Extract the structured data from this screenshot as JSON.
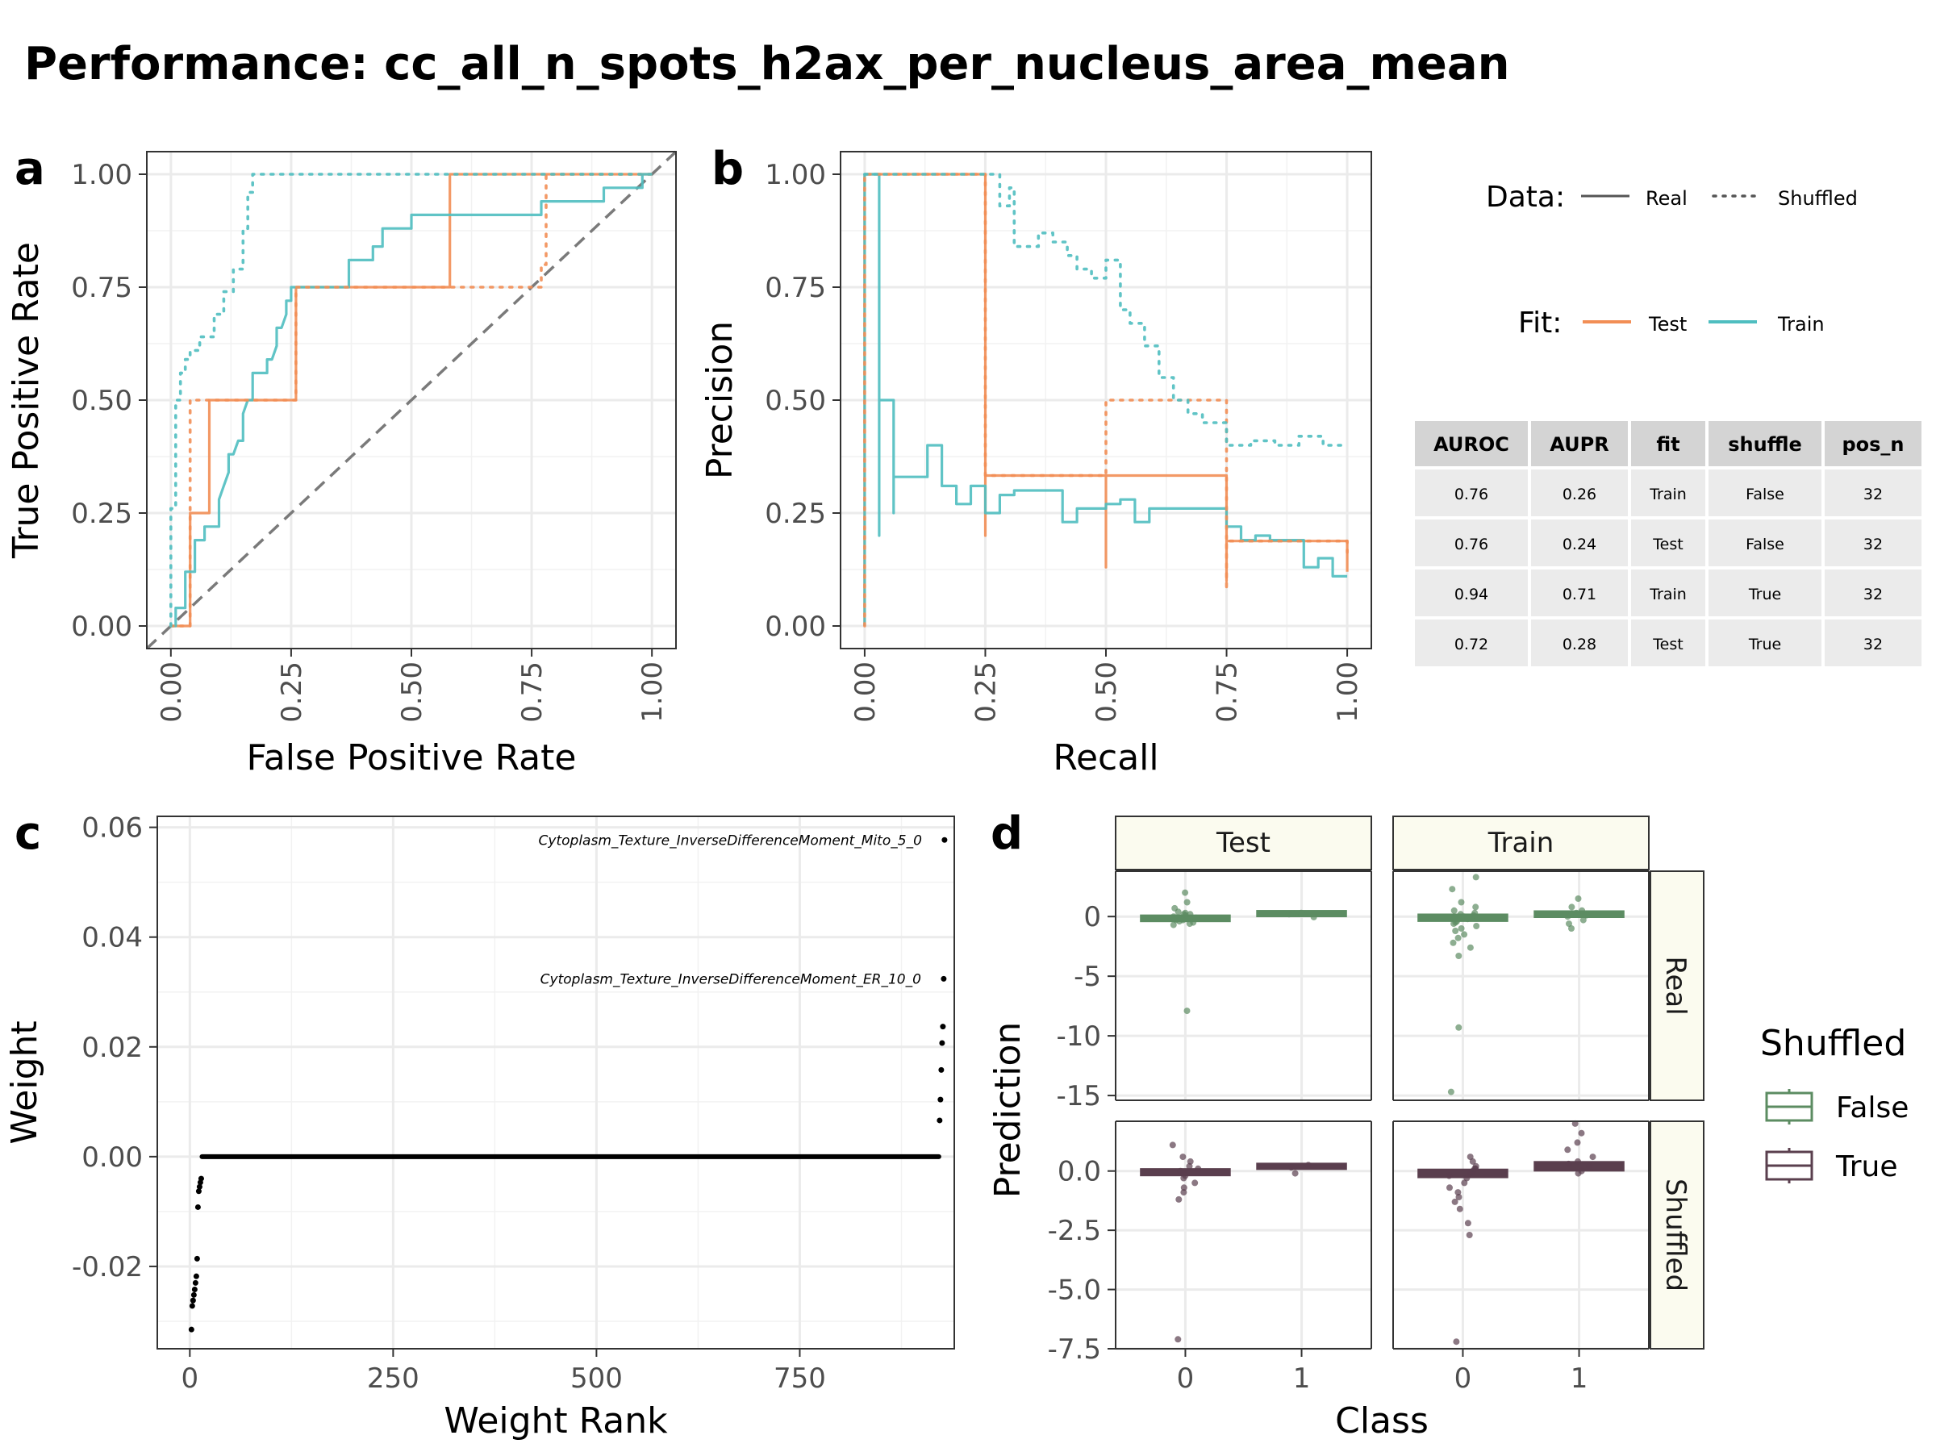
{
  "title": "Performance: cc_all_n_spots_h2ax_per_nucleus_area_mean",
  "panel_labels": {
    "a": "a",
    "b": "b",
    "c": "c",
    "d": "d"
  },
  "colors": {
    "test": "#f28e55",
    "train": "#4fbec0",
    "shuffled_false": "#5c8c62",
    "shuffled_true": "#5a3f4e"
  },
  "legend_data": {
    "title": "Data:",
    "items": [
      {
        "label": "Real",
        "style": "solid"
      },
      {
        "label": "Shuffled",
        "style": "dotted"
      }
    ]
  },
  "legend_fit": {
    "title": "Fit:",
    "items": [
      {
        "label": "Test",
        "color": "#f28e55"
      },
      {
        "label": "Train",
        "color": "#4fbec0"
      }
    ]
  },
  "legend_shuffled": {
    "title": "Shuffled",
    "items": [
      {
        "label": "False",
        "color": "#5c8c62"
      },
      {
        "label": "True",
        "color": "#5a3f4e"
      }
    ]
  },
  "metrics_table": {
    "columns": [
      "AUROC",
      "AUPR",
      "fit",
      "shuffle",
      "pos_n"
    ],
    "rows": [
      [
        "0.76",
        "0.26",
        "Train",
        "False",
        "32"
      ],
      [
        "0.76",
        "0.24",
        "Test",
        "False",
        "32"
      ],
      [
        "0.94",
        "0.71",
        "Train",
        "True",
        "32"
      ],
      [
        "0.72",
        "0.28",
        "Test",
        "True",
        "32"
      ]
    ]
  },
  "chart_data": [
    {
      "id": "a",
      "type": "line",
      "title": "",
      "xlabel": "False Positive Rate",
      "ylabel": "True Positive Rate",
      "xlim": [
        -0.05,
        1.05
      ],
      "ylim": [
        -0.05,
        1.05
      ],
      "xticks": [
        "0.00",
        "0.25",
        "0.50",
        "0.75",
        "1.00"
      ],
      "yticks": [
        "0.00",
        "0.25",
        "0.50",
        "0.75",
        "1.00"
      ],
      "diagonal": true,
      "series": [
        {
          "name": "Test Real",
          "fit": "Test",
          "data": "Real",
          "x": [
            0,
            0.04,
            0.04,
            0.04,
            0.08,
            0.08,
            0.26,
            0.26,
            0.58,
            0.58,
            1.0
          ],
          "y": [
            0,
            0,
            0.1,
            0.25,
            0.25,
            0.5,
            0.5,
            0.75,
            0.75,
            1.0,
            1.0
          ]
        },
        {
          "name": "Train Real",
          "fit": "Train",
          "data": "Real",
          "x": [
            0,
            0.01,
            0.01,
            0.03,
            0.03,
            0.05,
            0.05,
            0.06,
            0.07,
            0.07,
            0.1,
            0.1,
            0.11,
            0.12,
            0.12,
            0.13,
            0.14,
            0.15,
            0.15,
            0.16,
            0.17,
            0.17,
            0.2,
            0.2,
            0.21,
            0.22,
            0.22,
            0.23,
            0.24,
            0.24,
            0.25,
            0.25,
            0.26,
            0.26,
            0.29,
            0.29,
            0.37,
            0.37,
            0.42,
            0.42,
            0.44,
            0.44,
            0.5,
            0.5,
            0.77,
            0.77,
            0.9,
            0.9,
            0.96,
            0.96,
            0.98,
            0.98,
            1.0
          ],
          "y": [
            0,
            0,
            0.04,
            0.04,
            0.12,
            0.12,
            0.19,
            0.19,
            0.19,
            0.22,
            0.22,
            0.28,
            0.31,
            0.34,
            0.38,
            0.38,
            0.41,
            0.41,
            0.47,
            0.5,
            0.5,
            0.56,
            0.56,
            0.59,
            0.59,
            0.62,
            0.66,
            0.66,
            0.69,
            0.72,
            0.72,
            0.75,
            0.75,
            0.75,
            0.75,
            0.75,
            0.75,
            0.81,
            0.81,
            0.84,
            0.84,
            0.88,
            0.88,
            0.91,
            0.91,
            0.94,
            0.94,
            0.97,
            0.97,
            0.97,
            0.97,
            1.0,
            1.0
          ]
        },
        {
          "name": "Test Shuffled",
          "fit": "Test",
          "data": "Shuffled",
          "x": [
            0,
            0.04,
            0.04,
            0.04,
            0.26,
            0.26,
            0.77,
            0.77,
            0.78,
            0.78,
            1.0
          ],
          "y": [
            0,
            0,
            0.1,
            0.5,
            0.5,
            0.75,
            0.75,
            0.8,
            0.8,
            1.0,
            1.0
          ]
        },
        {
          "name": "Train Shuffled",
          "fit": "Train",
          "data": "Shuffled",
          "x": [
            0,
            0.0,
            0.01,
            0.01,
            0.02,
            0.02,
            0.03,
            0.03,
            0.04,
            0.04,
            0.06,
            0.06,
            0.09,
            0.09,
            0.11,
            0.11,
            0.13,
            0.13,
            0.15,
            0.15,
            0.16,
            0.16,
            0.17,
            0.17,
            1.0
          ],
          "y": [
            0,
            0.26,
            0.26,
            0.5,
            0.5,
            0.56,
            0.56,
            0.59,
            0.59,
            0.61,
            0.61,
            0.64,
            0.64,
            0.69,
            0.69,
            0.74,
            0.74,
            0.79,
            0.79,
            0.88,
            0.88,
            0.96,
            0.96,
            1.0,
            1.0
          ]
        }
      ]
    },
    {
      "id": "b",
      "type": "line",
      "title": "",
      "xlabel": "Recall",
      "ylabel": "Precision",
      "xlim": [
        -0.05,
        1.05
      ],
      "ylim": [
        -0.05,
        1.05
      ],
      "xticks": [
        "0.00",
        "0.25",
        "0.50",
        "0.75",
        "1.00"
      ],
      "yticks": [
        "0.00",
        "0.25",
        "0.50",
        "0.75",
        "1.00"
      ],
      "series": [
        {
          "name": "Test Real",
          "fit": "Test",
          "data": "Real",
          "x": [
            0,
            0,
            0.25,
            0.25,
            0.25,
            0.25,
            0.5,
            0.5,
            0.5,
            0.75,
            0.75,
            0.75,
            0.75,
            1.0,
            1.0
          ],
          "y": [
            0,
            1.0,
            1.0,
            0.2,
            0.333,
            0.333,
            0.333,
            0.13,
            0.333,
            0.333,
            0.1,
            0.333,
            0.188,
            0.188,
            0.12
          ]
        },
        {
          "name": "Train Real",
          "fit": "Train",
          "data": "Real",
          "x": [
            0,
            0,
            0.03,
            0.03,
            0.03,
            0.03,
            0.06,
            0.06,
            0.06,
            0.06,
            0.13,
            0.13,
            0.16,
            0.16,
            0.19,
            0.19,
            0.22,
            0.22,
            0.25,
            0.25,
            0.28,
            0.28,
            0.31,
            0.31,
            0.34,
            0.34,
            0.41,
            0.41,
            0.44,
            0.44,
            0.5,
            0.5,
            0.53,
            0.53,
            0.56,
            0.56,
            0.59,
            0.59,
            0.6,
            0.6,
            0.75,
            0.75,
            0.78,
            0.78,
            0.81,
            0.81,
            0.84,
            0.84,
            0.91,
            0.91,
            0.94,
            0.94,
            0.97,
            0.97,
            1.0
          ],
          "y": [
            0,
            1.0,
            1.0,
            0.2,
            0.5,
            0.5,
            0.5,
            0.25,
            0.33,
            0.33,
            0.33,
            0.4,
            0.4,
            0.31,
            0.31,
            0.27,
            0.27,
            0.31,
            0.31,
            0.25,
            0.25,
            0.29,
            0.29,
            0.3,
            0.3,
            0.3,
            0.3,
            0.23,
            0.23,
            0.26,
            0.26,
            0.27,
            0.27,
            0.28,
            0.28,
            0.23,
            0.23,
            0.26,
            0.26,
            0.26,
            0.26,
            0.22,
            0.22,
            0.19,
            0.19,
            0.2,
            0.2,
            0.19,
            0.19,
            0.13,
            0.13,
            0.15,
            0.15,
            0.11,
            0.11
          ]
        },
        {
          "name": "Test Shuffled",
          "fit": "Test",
          "data": "Shuffled",
          "x": [
            0,
            0,
            0.25,
            0.25,
            0.5,
            0.5,
            0.75,
            0.75,
            0.75,
            1.0,
            1.0
          ],
          "y": [
            0,
            1.0,
            1.0,
            0.333,
            0.333,
            0.5,
            0.5,
            0.08,
            0.188,
            0.188,
            0.15
          ]
        },
        {
          "name": "Train Shuffled",
          "fit": "Train",
          "data": "Shuffled",
          "x": [
            0,
            0,
            0.28,
            0.28,
            0.3,
            0.3,
            0.31,
            0.31,
            0.36,
            0.36,
            0.39,
            0.39,
            0.42,
            0.42,
            0.44,
            0.44,
            0.47,
            0.47,
            0.5,
            0.5,
            0.53,
            0.53,
            0.55,
            0.55,
            0.58,
            0.58,
            0.61,
            0.61,
            0.64,
            0.64,
            0.67,
            0.67,
            0.7,
            0.7,
            0.75,
            0.75,
            0.8,
            0.8,
            0.85,
            0.85,
            0.9,
            0.9,
            0.95,
            0.95,
            1.0
          ],
          "y": [
            1.0,
            1.0,
            1.0,
            0.93,
            0.93,
            0.97,
            0.97,
            0.84,
            0.84,
            0.87,
            0.87,
            0.85,
            0.85,
            0.82,
            0.82,
            0.79,
            0.79,
            0.77,
            0.77,
            0.81,
            0.81,
            0.7,
            0.7,
            0.67,
            0.67,
            0.62,
            0.62,
            0.55,
            0.55,
            0.5,
            0.5,
            0.47,
            0.47,
            0.45,
            0.45,
            0.4,
            0.4,
            0.41,
            0.41,
            0.4,
            0.4,
            0.42,
            0.42,
            0.4,
            0.4
          ]
        }
      ]
    },
    {
      "id": "c",
      "type": "scatter",
      "title": "",
      "xlabel": "Weight Rank",
      "ylabel": "Weight",
      "xlim": [
        -40,
        940
      ],
      "ylim": [
        -0.035,
        0.062
      ],
      "xticks": [
        {
          "value": 0,
          "label": "0"
        },
        {
          "value": 250,
          "label": "250"
        },
        {
          "value": 500,
          "label": "500"
        },
        {
          "value": 750,
          "label": "750"
        }
      ],
      "yticks": [
        {
          "value": -0.02,
          "label": "-0.02"
        },
        {
          "value": 0.0,
          "label": "0.00"
        },
        {
          "value": 0.02,
          "label": "0.02"
        },
        {
          "value": 0.04,
          "label": "0.04"
        },
        {
          "value": 0.06,
          "label": "0.06"
        }
      ],
      "points": [
        {
          "rank": 2,
          "weight": -0.0315
        },
        {
          "rank": 3,
          "weight": -0.0272
        },
        {
          "rank": 4,
          "weight": -0.0262
        },
        {
          "rank": 5,
          "weight": -0.0252
        },
        {
          "rank": 6,
          "weight": -0.0242
        },
        {
          "rank": 7,
          "weight": -0.023
        },
        {
          "rank": 8,
          "weight": -0.0218
        },
        {
          "rank": 9,
          "weight": -0.0186
        },
        {
          "rank": 10,
          "weight": -0.0092
        },
        {
          "rank": 11,
          "weight": -0.0063
        },
        {
          "rank": 12,
          "weight": -0.0055
        },
        {
          "rank": 13,
          "weight": -0.0047
        },
        {
          "rank": 14,
          "weight": -0.004
        },
        {
          "rank": 922,
          "weight": 0.0066
        },
        {
          "rank": 923,
          "weight": 0.0104
        },
        {
          "rank": 924,
          "weight": 0.0158
        },
        {
          "rank": 925,
          "weight": 0.0207
        },
        {
          "rank": 926,
          "weight": 0.0237
        },
        {
          "rank": 927,
          "weight": 0.0324
        },
        {
          "rank": 928,
          "weight": 0.0577
        }
      ],
      "zero_run": {
        "from": 15,
        "to": 921,
        "weight": 0.0
      },
      "annotations": [
        {
          "text": "Cytoplasm_Texture_InverseDifferenceMoment_Mito_5_0",
          "rank": 928,
          "weight": 0.0577
        },
        {
          "text": "Cytoplasm_Texture_InverseDifferenceMoment_ER_10_0",
          "rank": 927,
          "weight": 0.0324
        }
      ]
    },
    {
      "id": "d",
      "type": "box",
      "title": "",
      "xlabel": "Class",
      "ylabel": "Prediction",
      "col_facets": [
        "Test",
        "Train"
      ],
      "row_facets": [
        "Real",
        "Shuffled"
      ],
      "categories": [
        "0",
        "1"
      ],
      "rows": [
        {
          "name": "Real",
          "shuffled": "False",
          "ylim": [
            -15.4,
            3.8
          ],
          "yticks": [
            {
              "value": 0,
              "label": "0"
            },
            {
              "value": -5,
              "label": "-5"
            },
            {
              "value": -10,
              "label": "-10"
            },
            {
              "value": -15,
              "label": "-15"
            }
          ]
        },
        {
          "name": "Shuffled",
          "shuffled": "True",
          "ylim": [
            -7.5,
            2.1
          ],
          "yticks": [
            {
              "value": 0,
              "label": "0.0"
            },
            {
              "value": -2.5,
              "label": "-2.5"
            },
            {
              "value": -5,
              "label": "-5.0"
            },
            {
              "value": -7.5,
              "label": "-7.5"
            }
          ]
        }
      ],
      "boxes": [
        {
          "row": "Real",
          "col": "Test",
          "class": "0",
          "center": -0.15,
          "half": 0.22,
          "jitter": [
            2.0,
            1.2,
            0.7,
            0.4,
            0.2,
            0.1,
            0.0,
            -0.1,
            -0.2,
            -0.3,
            -0.4,
            -0.5,
            -0.6,
            -0.7,
            0.3,
            -0.1,
            0.2,
            -0.3,
            -7.9
          ]
        },
        {
          "row": "Real",
          "col": "Test",
          "class": "1",
          "center": 0.25,
          "half": 0.2,
          "jitter": [
            0.3,
            0.25,
            0.2,
            -0.05
          ]
        },
        {
          "row": "Real",
          "col": "Train",
          "class": "0",
          "center": -0.1,
          "half": 0.25,
          "jitter": [
            3.3,
            2.3,
            1.2,
            0.8,
            0.5,
            0.2,
            0.0,
            -0.2,
            -0.4,
            -0.6,
            -0.8,
            -1.0,
            -1.2,
            -1.5,
            -1.8,
            -2.2,
            -2.6,
            -3.3,
            -9.3,
            -14.7,
            0.3,
            -0.5,
            0.1
          ]
        },
        {
          "row": "Real",
          "col": "Train",
          "class": "1",
          "center": 0.2,
          "half": 0.22,
          "jitter": [
            1.5,
            0.8,
            0.5,
            0.3,
            0.1,
            -0.3,
            -0.6,
            -1.0,
            0.2,
            0.0
          ]
        },
        {
          "row": "Shuffled",
          "col": "Test",
          "class": "0",
          "center": -0.05,
          "half": 0.12,
          "jitter": [
            1.1,
            0.6,
            0.4,
            0.2,
            0.1,
            0.0,
            -0.1,
            -0.2,
            -0.3,
            -0.5,
            -0.7,
            -0.9,
            -1.2,
            -7.1
          ]
        },
        {
          "row": "Shuffled",
          "col": "Test",
          "class": "1",
          "center": 0.2,
          "half": 0.1,
          "jitter": [
            0.25,
            0.15,
            -0.1
          ]
        },
        {
          "row": "Shuffled",
          "col": "Train",
          "class": "0",
          "center": -0.1,
          "half": 0.15,
          "jitter": [
            0.6,
            0.4,
            0.2,
            0.1,
            0.0,
            -0.1,
            -0.3,
            -0.5,
            -0.7,
            -0.9,
            -1.1,
            -1.3,
            -1.6,
            -2.2,
            -2.7,
            -7.2,
            0.1,
            -0.2
          ]
        },
        {
          "row": "Shuffled",
          "col": "Train",
          "class": "1",
          "center": 0.2,
          "half": 0.17,
          "jitter": [
            2.0,
            1.6,
            1.2,
            0.9,
            0.6,
            0.4,
            0.2,
            0.0,
            -0.1,
            0.3
          ]
        }
      ]
    }
  ]
}
